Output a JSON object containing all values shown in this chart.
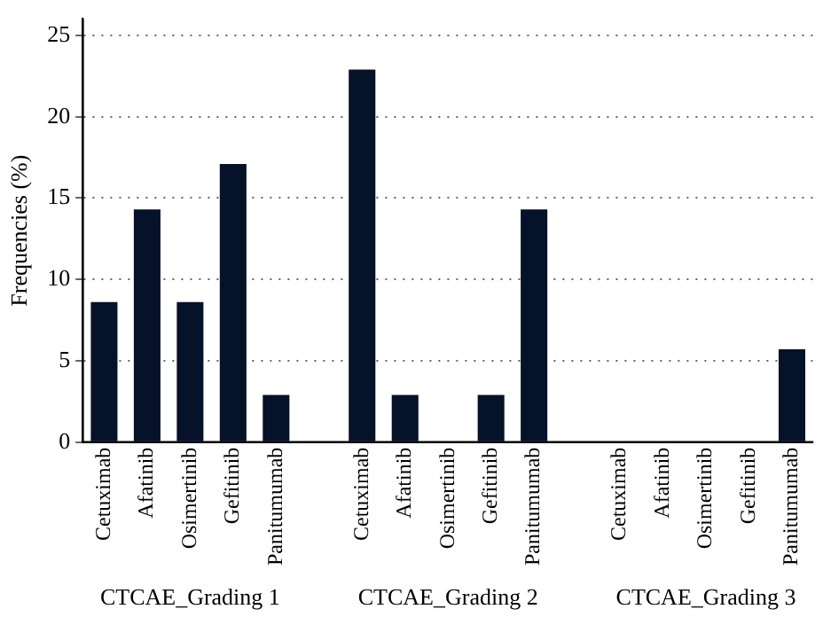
{
  "chart_data": {
    "type": "bar",
    "ylabel": "Frequencies (%)",
    "categories": [
      "Cetuximab",
      "Afatinib",
      "Osimertinib",
      "Gefitinib",
      "Panitumumab",
      null,
      "Cetuximab",
      "Afatinib",
      "Osimertinib",
      "Gefitinib",
      "Panitumumab",
      null,
      "Cetuximab",
      "Afatinib",
      "Osimertinib",
      "Gefitinib",
      "Panitumumab"
    ],
    "values": [
      8.6,
      14.3,
      8.6,
      17.1,
      2.9,
      null,
      22.9,
      2.9,
      0,
      2.9,
      14.3,
      null,
      0,
      0,
      0,
      0,
      5.7
    ],
    "color": "#06112a",
    "ylim": [
      0,
      26
    ],
    "yticks": [
      0,
      5,
      10,
      15,
      20,
      25
    ],
    "grid": "y",
    "legend": false,
    "annotations": [
      "CTCAE_Grading 1",
      "CTCAE_Grading 2",
      "CTCAE_Grading 3"
    ]
  }
}
